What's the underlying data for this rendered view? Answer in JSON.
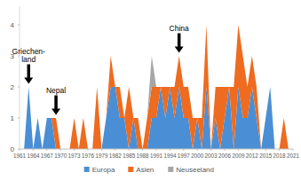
{
  "chart_data": {
    "type": "area",
    "stacked": true,
    "grid": false,
    "legend": "bottom",
    "x": [
      1961,
      1962,
      1963,
      1964,
      1965,
      1966,
      1967,
      1968,
      1969,
      1970,
      1971,
      1972,
      1973,
      1974,
      1975,
      1976,
      1977,
      1978,
      1979,
      1980,
      1981,
      1982,
      1983,
      1984,
      1985,
      1986,
      1987,
      1988,
      1989,
      1990,
      1991,
      1992,
      1993,
      1994,
      1995,
      1996,
      1997,
      1998,
      1999,
      2000,
      2001,
      2002,
      2003,
      2004,
      2005,
      2006,
      2007,
      2008,
      2009,
      2010,
      2011,
      2012,
      2013,
      2014,
      2015,
      2016,
      2017,
      2018,
      2019,
      2020
    ],
    "series": [
      {
        "name": "Europa",
        "color": "#4a8fd6",
        "values": [
          0,
          0,
          2,
          0,
          1,
          0,
          1,
          1,
          0,
          0,
          0,
          0,
          0,
          0,
          0,
          0,
          0,
          0,
          0,
          1,
          2,
          2,
          1,
          1,
          0,
          1,
          0,
          0,
          0,
          1,
          1,
          2,
          1,
          2,
          1,
          2,
          1,
          1,
          0,
          1,
          0,
          2,
          0,
          1,
          0,
          1,
          2,
          0,
          2,
          1,
          1,
          2,
          1,
          0,
          1,
          2,
          0,
          0,
          0,
          0
        ]
      },
      {
        "name": "Asien",
        "color": "#ee6b1f",
        "values": [
          0,
          0,
          0,
          0,
          0,
          0,
          0,
          0,
          1,
          0,
          0,
          0,
          1,
          0,
          1,
          0,
          0,
          2,
          0,
          0,
          1,
          0,
          1,
          0,
          2,
          0,
          1,
          0,
          1,
          1,
          1,
          0,
          1,
          0,
          1,
          1,
          1,
          1,
          1,
          0,
          1,
          2,
          0,
          1,
          2,
          1,
          0,
          2,
          2,
          2,
          1,
          1,
          1,
          0,
          0,
          0,
          0,
          0,
          1,
          0
        ]
      },
      {
        "name": "Neuseeland",
        "color": "#a6a6a6",
        "values": [
          0,
          0,
          0,
          0,
          0,
          0,
          0,
          0,
          0,
          0,
          0,
          0,
          0,
          0,
          0,
          0,
          0,
          0,
          0,
          0,
          0,
          0,
          0,
          0,
          0,
          0,
          0,
          0,
          0,
          1,
          0,
          0,
          0,
          0,
          0,
          0,
          0,
          0,
          0,
          0,
          0,
          0,
          0,
          0,
          0,
          0,
          0,
          0,
          0,
          0,
          0,
          0,
          0,
          0,
          0,
          0,
          0,
          0,
          0,
          0
        ]
      }
    ],
    "xlim": [
      1961,
      2021
    ],
    "xticks": [
      1961,
      1964,
      1967,
      1970,
      1973,
      1976,
      1979,
      1982,
      1985,
      1988,
      1991,
      1994,
      1997,
      2000,
      2003,
      2006,
      2009,
      2012,
      2015,
      2018,
      2021
    ],
    "ylim": [
      0,
      4.6
    ],
    "yticks": [
      0,
      1,
      2,
      3,
      4
    ],
    "annotations": [
      {
        "text": "Griechen-\nland",
        "x": 1963,
        "y": 2.1
      },
      {
        "text": "Nepal",
        "x": 1969,
        "y": 1.1
      },
      {
        "text": "China",
        "x": 1996,
        "y": 3.1
      }
    ]
  }
}
